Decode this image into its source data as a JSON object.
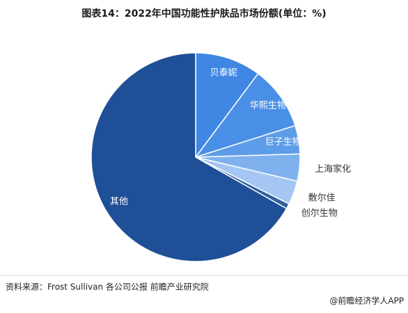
{
  "chart_data": {
    "type": "pie",
    "title": "图表14：2022年中国功能性护肤品市场份额(单位：%)",
    "categories": [
      "贝泰妮",
      "华熙生物",
      "巨子生物",
      "上海家化",
      "敷尔佳",
      "创尔生物",
      "其他"
    ],
    "values": [
      10.2,
      9.9,
      4.4,
      4.2,
      3.7,
      0.8,
      66.8
    ],
    "colors": [
      "#3f87e3",
      "#4a8fe6",
      "#5c9ce9",
      "#7fb1ef",
      "#a5c6f2",
      "#2f5f9f",
      "#1f4f97"
    ],
    "source": "资料来源：Frost Sullivan 各公司公报 前瞻产业研究院",
    "footer": "@前瞻经济学人APP"
  }
}
